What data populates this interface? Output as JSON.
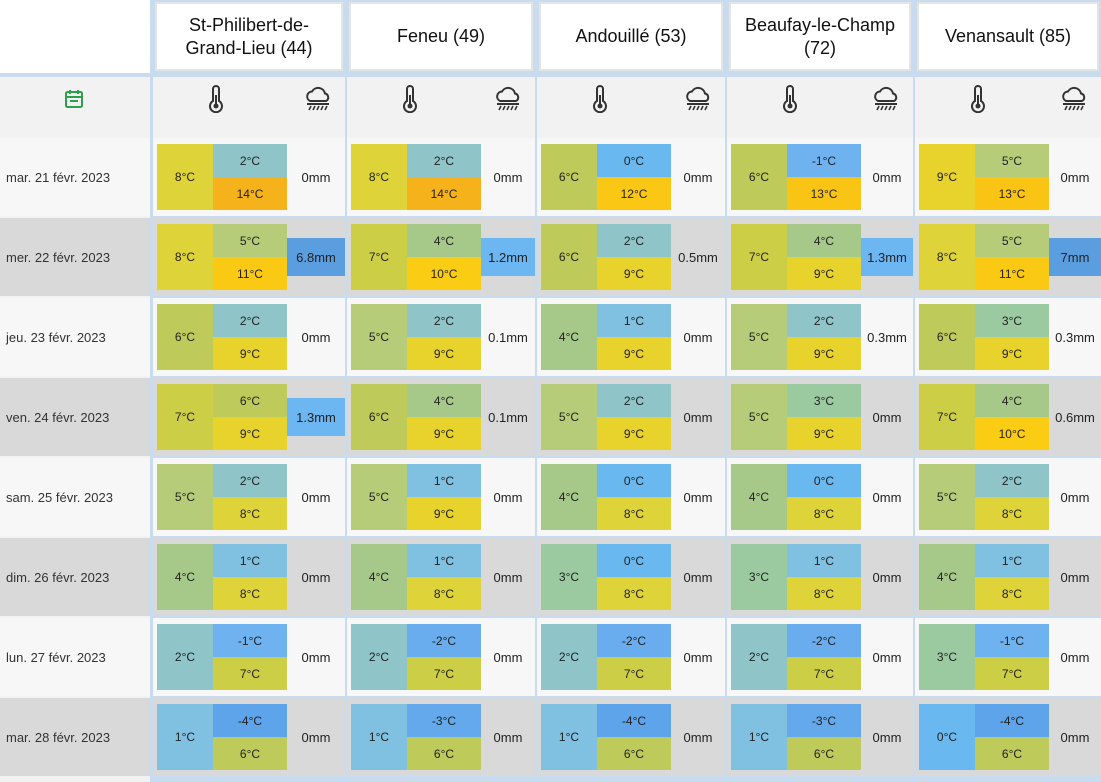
{
  "columns": [
    "St-Philibert-de-Grand-Lieu (44)",
    "Feneu (49)",
    "Andouillé (53)",
    "Beaufay-le-Champ (72)",
    "Venansault (85)"
  ],
  "rows": [
    {
      "date": "mar. 21 févr. 2023",
      "cells": [
        {
          "mean": "8°C",
          "min": "2°C",
          "max": "14°C",
          "rain": "0mm"
        },
        {
          "mean": "8°C",
          "min": "2°C",
          "max": "14°C",
          "rain": "0mm"
        },
        {
          "mean": "6°C",
          "min": "0°C",
          "max": "12°C",
          "rain": "0mm"
        },
        {
          "mean": "6°C",
          "min": "-1°C",
          "max": "13°C",
          "rain": "0mm"
        },
        {
          "mean": "9°C",
          "min": "5°C",
          "max": "13°C",
          "rain": "0mm"
        }
      ]
    },
    {
      "date": "mer. 22 févr. 2023",
      "cells": [
        {
          "mean": "8°C",
          "min": "5°C",
          "max": "11°C",
          "rain": "6.8mm"
        },
        {
          "mean": "7°C",
          "min": "4°C",
          "max": "10°C",
          "rain": "1.2mm"
        },
        {
          "mean": "6°C",
          "min": "2°C",
          "max": "9°C",
          "rain": "0.5mm"
        },
        {
          "mean": "7°C",
          "min": "4°C",
          "max": "9°C",
          "rain": "1.3mm"
        },
        {
          "mean": "8°C",
          "min": "5°C",
          "max": "11°C",
          "rain": "7mm"
        }
      ]
    },
    {
      "date": "jeu. 23 févr. 2023",
      "cells": [
        {
          "mean": "6°C",
          "min": "2°C",
          "max": "9°C",
          "rain": "0mm"
        },
        {
          "mean": "5°C",
          "min": "2°C",
          "max": "9°C",
          "rain": "0.1mm"
        },
        {
          "mean": "4°C",
          "min": "1°C",
          "max": "9°C",
          "rain": "0mm"
        },
        {
          "mean": "5°C",
          "min": "2°C",
          "max": "9°C",
          "rain": "0.3mm"
        },
        {
          "mean": "6°C",
          "min": "3°C",
          "max": "9°C",
          "rain": "0.3mm"
        }
      ]
    },
    {
      "date": "ven. 24 févr. 2023",
      "cells": [
        {
          "mean": "7°C",
          "min": "6°C",
          "max": "9°C",
          "rain": "1.3mm"
        },
        {
          "mean": "6°C",
          "min": "4°C",
          "max": "9°C",
          "rain": "0.1mm"
        },
        {
          "mean": "5°C",
          "min": "2°C",
          "max": "9°C",
          "rain": "0mm"
        },
        {
          "mean": "5°C",
          "min": "3°C",
          "max": "9°C",
          "rain": "0mm"
        },
        {
          "mean": "7°C",
          "min": "4°C",
          "max": "10°C",
          "rain": "0.6mm"
        }
      ]
    },
    {
      "date": "sam. 25 févr. 2023",
      "cells": [
        {
          "mean": "5°C",
          "min": "2°C",
          "max": "8°C",
          "rain": "0mm"
        },
        {
          "mean": "5°C",
          "min": "1°C",
          "max": "9°C",
          "rain": "0mm"
        },
        {
          "mean": "4°C",
          "min": "0°C",
          "max": "8°C",
          "rain": "0mm"
        },
        {
          "mean": "4°C",
          "min": "0°C",
          "max": "8°C",
          "rain": "0mm"
        },
        {
          "mean": "5°C",
          "min": "2°C",
          "max": "8°C",
          "rain": "0mm"
        }
      ]
    },
    {
      "date": "dim. 26 févr. 2023",
      "cells": [
        {
          "mean": "4°C",
          "min": "1°C",
          "max": "8°C",
          "rain": "0mm"
        },
        {
          "mean": "4°C",
          "min": "1°C",
          "max": "8°C",
          "rain": "0mm"
        },
        {
          "mean": "3°C",
          "min": "0°C",
          "max": "8°C",
          "rain": "0mm"
        },
        {
          "mean": "3°C",
          "min": "1°C",
          "max": "8°C",
          "rain": "0mm"
        },
        {
          "mean": "4°C",
          "min": "1°C",
          "max": "8°C",
          "rain": "0mm"
        }
      ]
    },
    {
      "date": "lun. 27 févr. 2023",
      "cells": [
        {
          "mean": "2°C",
          "min": "-1°C",
          "max": "7°C",
          "rain": "0mm"
        },
        {
          "mean": "2°C",
          "min": "-2°C",
          "max": "7°C",
          "rain": "0mm"
        },
        {
          "mean": "2°C",
          "min": "-2°C",
          "max": "7°C",
          "rain": "0mm"
        },
        {
          "mean": "2°C",
          "min": "-2°C",
          "max": "7°C",
          "rain": "0mm"
        },
        {
          "mean": "3°C",
          "min": "-1°C",
          "max": "7°C",
          "rain": "0mm"
        }
      ]
    },
    {
      "date": "mar. 28 févr. 2023",
      "cells": [
        {
          "mean": "1°C",
          "min": "-4°C",
          "max": "6°C",
          "rain": "0mm"
        },
        {
          "mean": "1°C",
          "min": "-3°C",
          "max": "6°C",
          "rain": "0mm"
        },
        {
          "mean": "1°C",
          "min": "-4°C",
          "max": "6°C",
          "rain": "0mm"
        },
        {
          "mean": "1°C",
          "min": "-3°C",
          "max": "6°C",
          "rain": "0mm"
        },
        {
          "mean": "0°C",
          "min": "-4°C",
          "max": "6°C",
          "rain": "0mm"
        }
      ]
    }
  ]
}
